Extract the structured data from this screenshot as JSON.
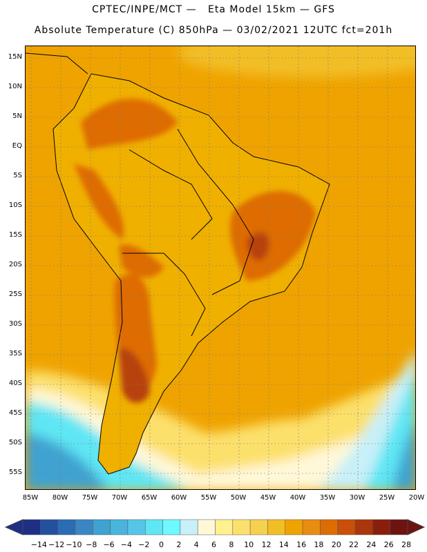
{
  "header": {
    "line1": "CPTEC/INPE/MCT —   Eta Model 15km — GFS",
    "line2": "Absolute Temperature (C) 850hPa — 03/02/2021 12UTC fct=201h"
  },
  "map": {
    "lat_labels": [
      "15N",
      "10N",
      "5N",
      "EQ",
      "5S",
      "10S",
      "15S",
      "20S",
      "25S",
      "30S",
      "35S",
      "40S",
      "45S",
      "50S",
      "55S"
    ],
    "lon_labels": [
      "85W",
      "80W",
      "75W",
      "70W",
      "65W",
      "60W",
      "55W",
      "50W",
      "45W",
      "40W",
      "35W",
      "30W",
      "25W",
      "20W"
    ],
    "colors": {
      "ocean_warm": "#efa300",
      "land_warm": "#f0b000",
      "hot": "#d65f0a",
      "very_hot": "#b8420b",
      "cool_yellow": "#fcd860",
      "pale": "#fff8d8",
      "light_cyan": "#c8f0f8",
      "cyan": "#5ee6f4",
      "blue": "#3fa2d0",
      "border": "#000000"
    }
  },
  "colorbar": {
    "labels": [
      "-14",
      "-12",
      "-10",
      "-8",
      "-6",
      "-4",
      "-2",
      "0",
      "2",
      "4",
      "6",
      "8",
      "10",
      "12",
      "14",
      "16",
      "18",
      "20",
      "22",
      "24",
      "26",
      "28"
    ],
    "colors": [
      "#1e2f84",
      "#2450a0",
      "#2c6cb4",
      "#3a86c4",
      "#3fa2d0",
      "#49b4dc",
      "#55c6e8",
      "#5ee6f4",
      "#6ef8ff",
      "#c8f0f8",
      "#fff8d8",
      "#fff090",
      "#fce06c",
      "#f8d050",
      "#f2be26",
      "#efa300",
      "#e88c12",
      "#de6c04",
      "#c8500a",
      "#aa360a",
      "#8a1e0c",
      "#6e1410"
    ]
  }
}
